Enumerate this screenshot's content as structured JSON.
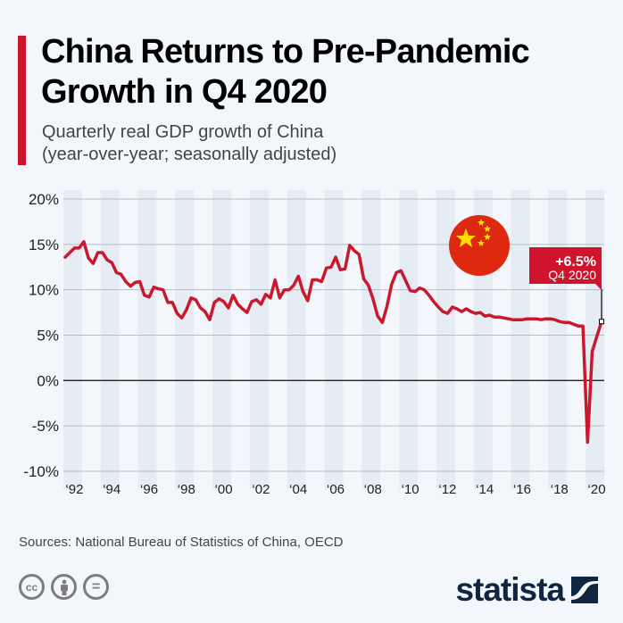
{
  "header": {
    "title": "China Returns to Pre-Pandemic Growth in Q4 2020",
    "subtitle_line1": "Quarterly real GDP growth of China",
    "subtitle_line2": "(year-over-year; seasonally adjusted)"
  },
  "colors": {
    "accent": "#d0142d",
    "line": "#c8192f",
    "band": "#e6ecf4",
    "logo": "#0f2540"
  },
  "chart_data": {
    "type": "line",
    "title": "China Returns to Pre-Pandemic Growth in Q4 2020",
    "subtitle": "Quarterly real GDP growth of China (year-over-year; seasonally adjusted)",
    "xlabel": "",
    "ylabel": "",
    "ylim": [
      -10,
      20
    ],
    "yticks": [
      20,
      15,
      10,
      5,
      0,
      -5,
      -10
    ],
    "ytick_labels": [
      "20%",
      "15%",
      "10%",
      "5%",
      "0%",
      "-5%",
      "-10%"
    ],
    "xlim": [
      1992,
      2021
    ],
    "xticks": [
      1992,
      1994,
      1996,
      1998,
      2000,
      2002,
      2004,
      2006,
      2008,
      2010,
      2012,
      2014,
      2016,
      2018,
      2020
    ],
    "xtick_labels": [
      "‘92",
      "‘94",
      "‘96",
      "‘98",
      "‘00",
      "‘02",
      "‘04",
      "‘06",
      "‘08",
      "‘10",
      "‘12",
      "‘14",
      "‘16",
      "‘18",
      "‘20"
    ],
    "grid": true,
    "x_start": "1992 Q1",
    "x_end": "2020 Q4",
    "series": [
      {
        "name": "Real GDP growth (yoy)",
        "values": [
          13.6,
          14.1,
          14.6,
          14.6,
          15.3,
          13.5,
          12.9,
          14.1,
          14.1,
          13.3,
          13.0,
          11.9,
          11.7,
          10.9,
          10.4,
          10.8,
          10.9,
          9.4,
          9.2,
          10.3,
          10.1,
          10.0,
          8.6,
          8.6,
          7.4,
          6.9,
          7.8,
          9.1,
          8.9,
          8.0,
          7.6,
          6.7,
          8.6,
          9.0,
          8.7,
          8.0,
          9.4,
          8.4,
          7.9,
          7.5,
          8.7,
          8.9,
          8.4,
          9.5,
          9.1,
          11.1,
          9.1,
          10.0,
          10.0,
          10.5,
          11.5,
          9.8,
          8.8,
          11.1,
          11.1,
          10.9,
          12.4,
          12.5,
          13.6,
          12.2,
          12.3,
          14.9,
          14.3,
          13.9,
          11.2,
          10.5,
          9.0,
          7.1,
          6.4,
          8.2,
          10.6,
          11.9,
          12.1,
          11.0,
          9.9,
          9.8,
          10.2,
          10.0,
          9.4,
          8.7,
          8.1,
          7.6,
          7.4,
          8.1,
          7.9,
          7.6,
          7.9,
          7.6,
          7.4,
          7.5,
          7.1,
          7.2,
          7.0,
          7.0,
          6.9,
          6.8,
          6.7,
          6.7,
          6.7,
          6.8,
          6.8,
          6.8,
          6.7,
          6.8,
          6.8,
          6.7,
          6.5,
          6.4,
          6.4,
          6.2,
          6.0,
          6.0,
          -6.8,
          3.2,
          4.9,
          6.5
        ]
      }
    ],
    "annotation": {
      "value_label": "+6.5%",
      "period_label": "Q4 2020"
    }
  },
  "footer": {
    "source": "Sources: National Bureau of Statistics of China, OECD",
    "license_icons": [
      "cc-icon",
      "by-attribution-icon",
      "no-derivatives-icon"
    ],
    "cc_label": "cc",
    "nd_label": "=",
    "logo_text": "statista"
  }
}
